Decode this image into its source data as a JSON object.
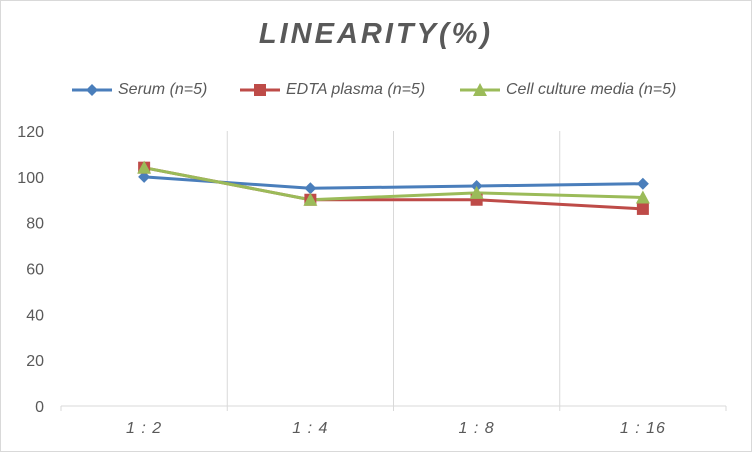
{
  "chart_data": {
    "type": "line",
    "title": "LINEARITY(%)",
    "xlabel": "",
    "ylabel": "",
    "categories": [
      "1:2",
      "1:4",
      "1:8",
      "1:16"
    ],
    "ylim": [
      0,
      120
    ],
    "yticks": [
      0,
      20,
      40,
      60,
      80,
      100,
      120
    ],
    "grid": "vertical",
    "legend_position": "top",
    "series": [
      {
        "name": "Serum (n=5)",
        "values": [
          100,
          95,
          96,
          97
        ],
        "color": "#4a7ebb",
        "marker": "diamond"
      },
      {
        "name": "EDTA plasma (n=5)",
        "values": [
          104,
          90,
          90,
          86
        ],
        "color": "#be4b48",
        "marker": "square"
      },
      {
        "name": "Cell culture media (n=5)",
        "values": [
          104,
          90,
          93,
          91
        ],
        "color": "#9bbb59",
        "marker": "triangle"
      }
    ]
  }
}
